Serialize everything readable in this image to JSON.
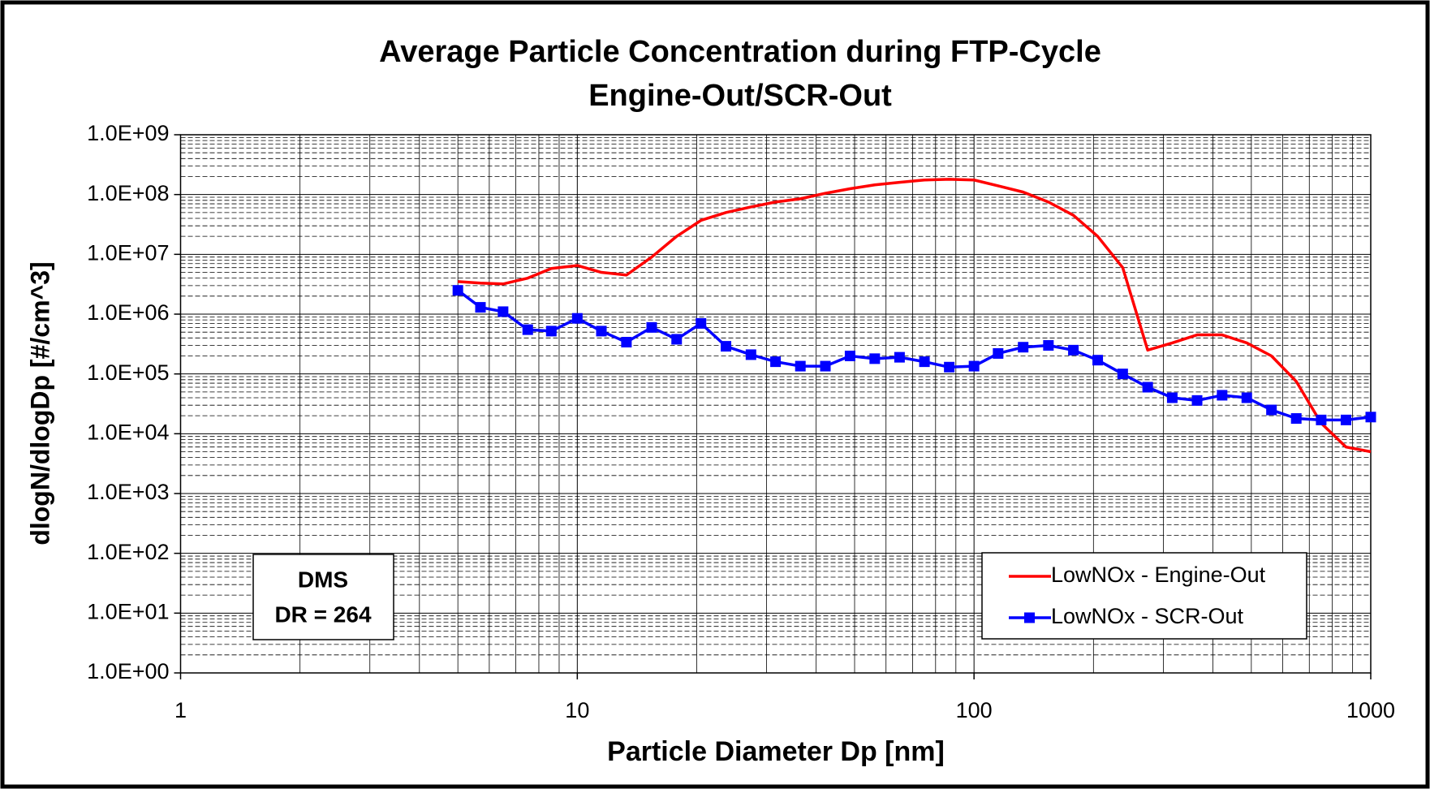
{
  "chart_data": {
    "type": "line",
    "title": "Average Particle Concentration during FTP-Cycle",
    "subtitle": "Engine-Out/SCR-Out",
    "x_label": "Particle Diameter Dp  [nm]",
    "y_label": "dlogN/dlogDp  [#/cm^3]",
    "annotation": [
      "DMS",
      "DR = 264"
    ],
    "x": [
      5,
      5.7,
      6.5,
      7.5,
      8.6,
      10,
      11.5,
      13.3,
      15.4,
      17.8,
      20.5,
      23.7,
      27.4,
      31.6,
      36.5,
      42.2,
      48.7,
      56.2,
      64.9,
      75,
      86.6,
      100,
      115,
      133,
      154,
      178,
      205,
      237,
      274,
      316,
      365,
      422,
      487,
      562,
      649,
      750,
      866,
      1000
    ],
    "series": [
      {
        "name": "LowNOx - Engine-Out",
        "color": "#ff0000",
        "marker": false,
        "values": [
          3500000,
          3300000,
          3200000,
          4000000,
          5800000,
          6500000,
          5000000,
          4500000,
          9000000,
          20000000,
          37000000,
          50000000,
          62000000,
          75000000,
          85000000,
          105000000,
          125000000,
          145000000,
          160000000,
          175000000,
          180000000,
          175000000,
          140000000,
          110000000,
          75000000,
          45000000,
          20000000,
          6000000,
          250000,
          330000,
          450000,
          450000,
          330000,
          200000,
          75000,
          15000,
          6000,
          5000
        ]
      },
      {
        "name": "LowNOx - SCR-Out",
        "color": "#0000ff",
        "marker": true,
        "values": [
          2500000,
          1300000,
          1100000,
          550000,
          520000,
          850000,
          520000,
          340000,
          600000,
          380000,
          700000,
          290000,
          210000,
          160000,
          135000,
          135000,
          200000,
          180000,
          190000,
          160000,
          130000,
          135000,
          220000,
          280000,
          300000,
          250000,
          170000,
          100000,
          60000,
          40000,
          36000,
          44000,
          40000,
          25000,
          18000,
          17000,
          17000,
          19000
        ]
      }
    ],
    "xlog": true,
    "ylog": true,
    "xlim": [
      1,
      1000
    ],
    "xticks": [
      1,
      10,
      100,
      1000
    ],
    "ylim": [
      1,
      1000000000
    ],
    "yticks": [
      {
        "value": 1,
        "label": "1.0E+00"
      },
      {
        "value": 10,
        "label": "1.0E+01"
      },
      {
        "value": 100,
        "label": "1.0E+02"
      },
      {
        "value": 1000,
        "label": "1.0E+03"
      },
      {
        "value": 10000,
        "label": "1.0E+04"
      },
      {
        "value": 100000,
        "label": "1.0E+05"
      },
      {
        "value": 1000000,
        "label": "1.0E+06"
      },
      {
        "value": 10000000,
        "label": "1.0E+07"
      },
      {
        "value": 100000000,
        "label": "1.0E+08"
      },
      {
        "value": 1000000000,
        "label": "1.0E+09"
      }
    ],
    "grid": true,
    "minor_grid": true,
    "legend": "lower right"
  }
}
